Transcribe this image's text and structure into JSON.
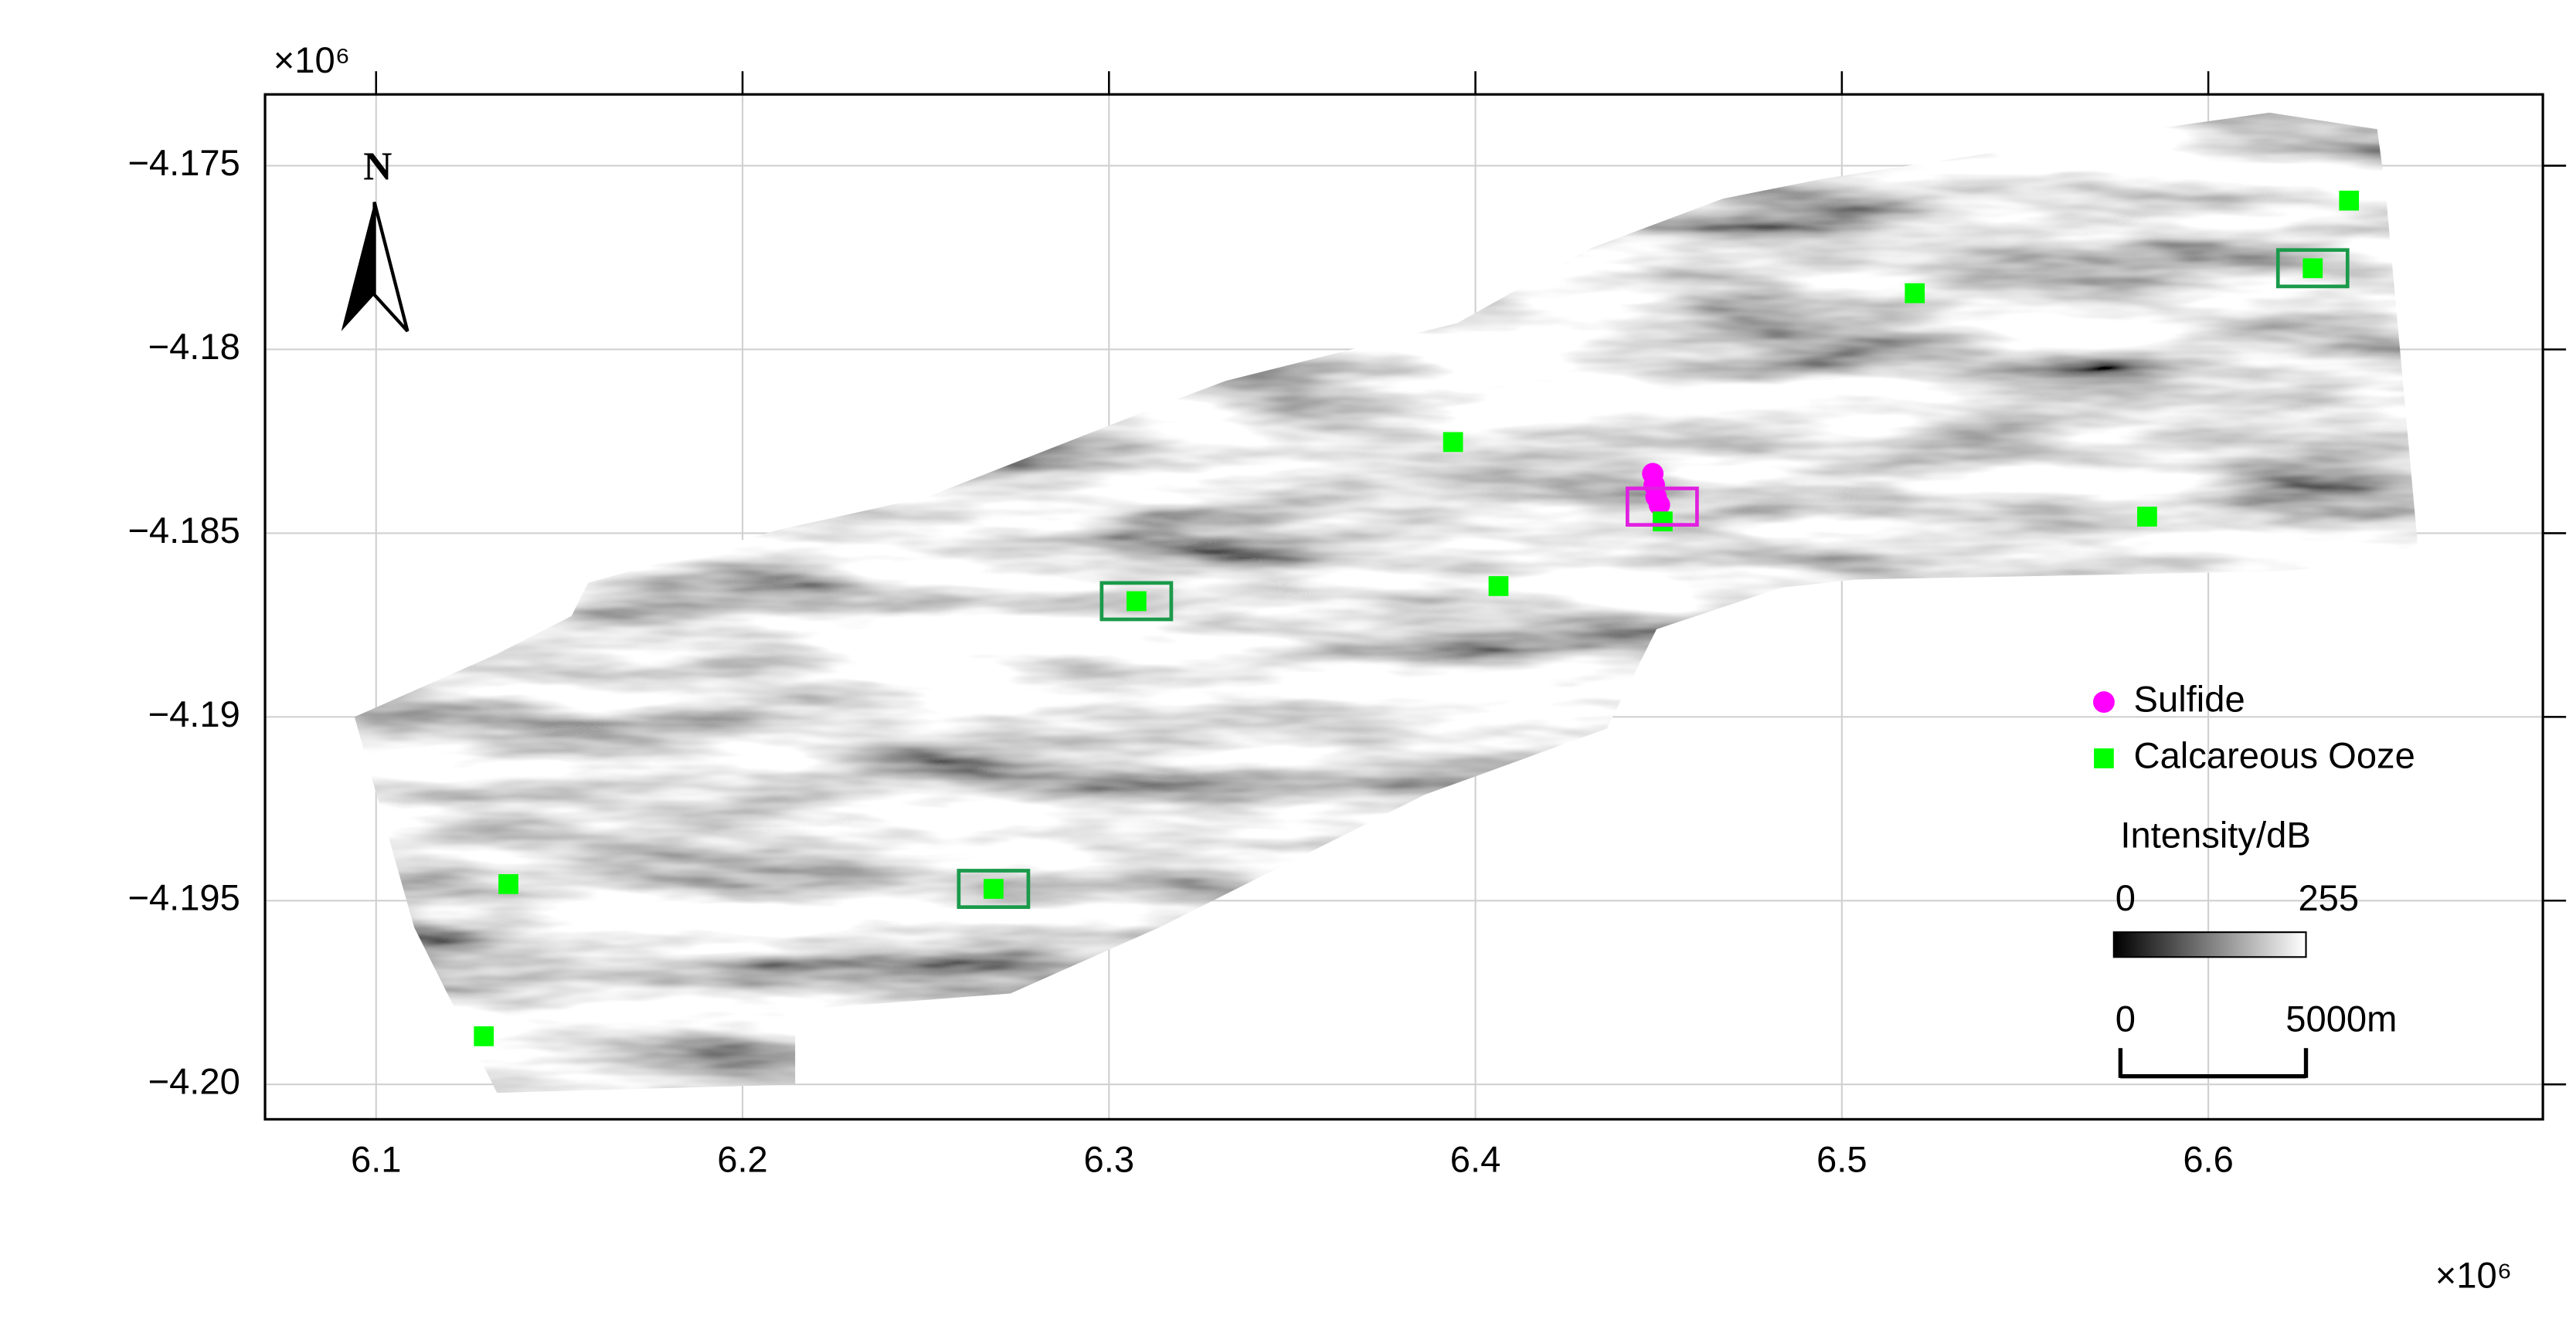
{
  "chart_data": {
    "type": "scatter",
    "x_multiplier_label": "×10⁶",
    "y_multiplier_label": "×10⁶",
    "north_label": "N",
    "xlim": [
      6.0697,
      6.6913
    ],
    "ylim": [
      -4.20095,
      -4.17306
    ],
    "xticks": [
      6.1,
      6.2,
      6.3,
      6.4,
      6.5,
      6.6
    ],
    "yticks": [
      {
        "value": -4.175,
        "label": "−4.175"
      },
      {
        "value": -4.18,
        "label": "−4.18"
      },
      {
        "value": -4.185,
        "label": "−4.185"
      },
      {
        "value": -4.19,
        "label": "−4.19"
      },
      {
        "value": -4.195,
        "label": "−4.195"
      },
      {
        "value": -4.2,
        "label": "−4.20"
      }
    ],
    "grid": true,
    "series": [
      {
        "name": "Sulfide",
        "color": "#ff00ff",
        "marker": "circle",
        "x": [
          6.4484,
          6.4488,
          6.4493,
          6.4502
        ],
        "y": [
          -4.18338,
          -4.18369,
          -4.18401,
          -4.18423
        ]
      },
      {
        "name": "Calcareous Ooze",
        "color": "#00ff00",
        "marker": "square",
        "x": [
          6.6384,
          6.6285,
          6.5199,
          6.3939,
          6.4511,
          6.5833,
          6.4063,
          6.3075,
          6.1361,
          6.2685,
          6.1294
        ],
        "y": [
          -4.17595,
          -4.17779,
          -4.17847,
          -4.18252,
          -4.18468,
          -4.18455,
          -4.18644,
          -4.18685,
          -4.19455,
          -4.19468,
          -4.19869
        ]
      }
    ],
    "colorbar": {
      "label": "Intensity/dB",
      "ticks": [
        0,
        255
      ]
    },
    "scale_bar": {
      "ticks": [
        0,
        {
          "value": 5000,
          "label": "5000m"
        }
      ]
    }
  }
}
